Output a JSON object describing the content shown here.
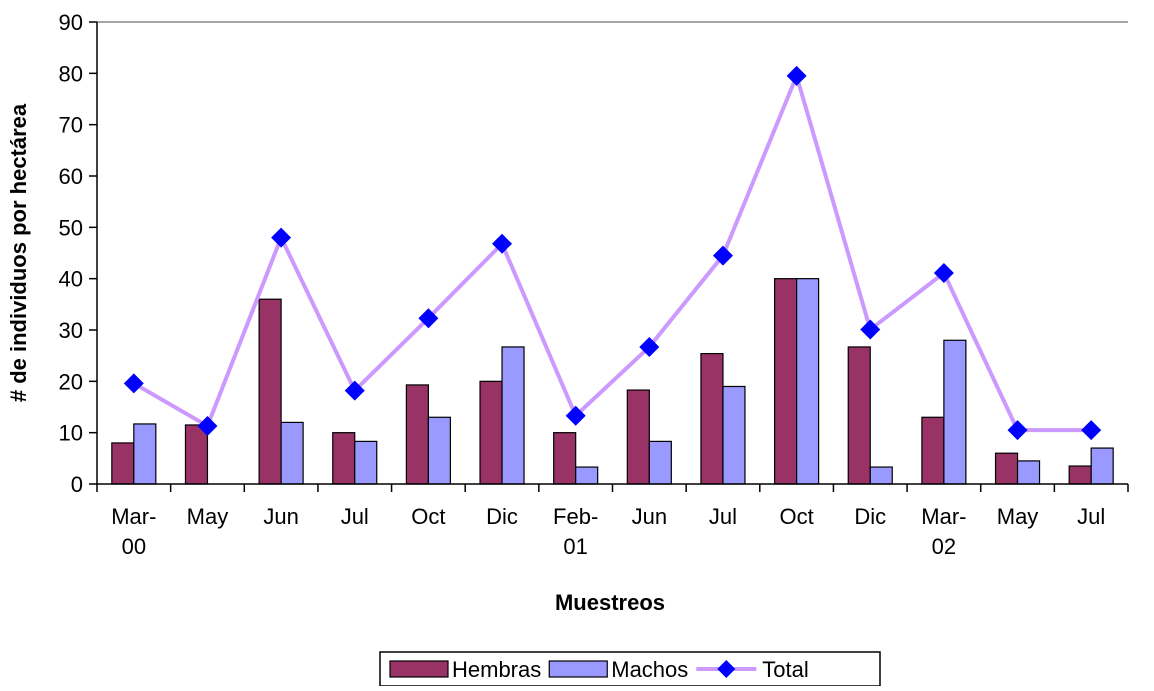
{
  "chart_data": {
    "type": "bar",
    "x_label": "Muestreos",
    "y_label": "# de individuos por hectárea",
    "categories": [
      "Mar-00",
      "May",
      "Jun",
      "Jul",
      "Oct",
      "Dic",
      "Feb-01",
      "Jun",
      "Jul",
      "Oct",
      "Dic",
      "Mar-02",
      "May",
      "Jul"
    ],
    "series": [
      {
        "name": "Hembras",
        "color": "#993366",
        "values": [
          8,
          11.5,
          36,
          10,
          19.3,
          20,
          10,
          18.3,
          25.4,
          40,
          26.7,
          13,
          6,
          3.5
        ]
      },
      {
        "name": "Machos",
        "color": "#9999ff",
        "values": [
          11.7,
          0,
          12,
          8.3,
          13,
          26.7,
          3.3,
          8.3,
          19,
          40,
          3.3,
          28,
          4.5,
          7
        ]
      },
      {
        "name": "Total",
        "type": "line",
        "color": "#cc99ff",
        "marker_color": "#0000ff",
        "values": [
          19.6,
          11.3,
          48,
          18.2,
          32.3,
          46.8,
          13.3,
          26.7,
          44.5,
          79.5,
          30.1,
          41.1,
          10.5,
          10.5
        ]
      }
    ],
    "ylim": [
      0,
      90
    ],
    "yticks": [
      0,
      10,
      20,
      30,
      40,
      50,
      60,
      70,
      80,
      90
    ]
  }
}
